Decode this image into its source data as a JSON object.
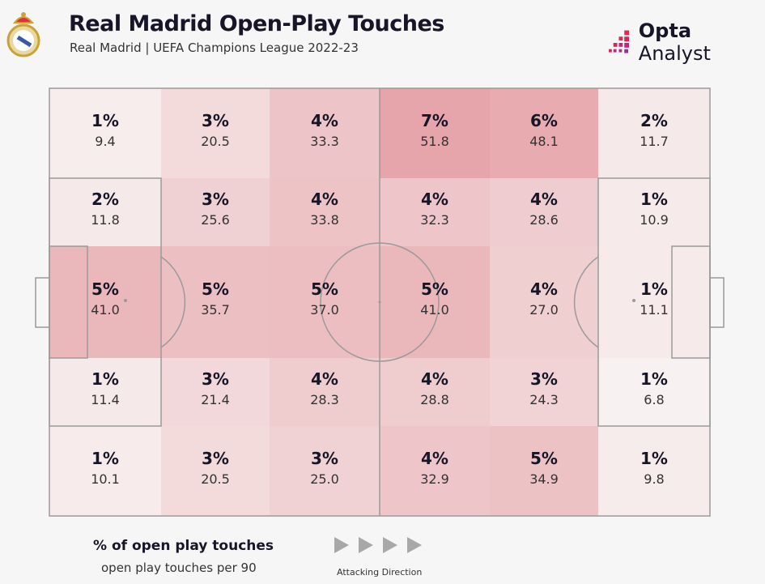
{
  "header": {
    "title": "Real Madrid Open-Play Touches",
    "subtitle": "Real Madrid | UEFA Champions League 2022-23",
    "brand": {
      "bold": "Opta",
      "regular": " Analyst"
    }
  },
  "legend": {
    "primary": "% of open play touches",
    "secondary": "open play touches per 90",
    "direction_label": "Attacking Direction"
  },
  "colors": {
    "low": "#f8f1f1",
    "high": "#e6a5aa",
    "lines": "#9a9a9a"
  },
  "chart_data": {
    "type": "heatmap",
    "title": "Real Madrid Open-Play Touches",
    "columns": 6,
    "rows": 5,
    "cells": [
      [
        {
          "pct": "1%",
          "per90": "9.4"
        },
        {
          "pct": "3%",
          "per90": "20.5"
        },
        {
          "pct": "4%",
          "per90": "33.3"
        },
        {
          "pct": "7%",
          "per90": "51.8"
        },
        {
          "pct": "6%",
          "per90": "48.1"
        },
        {
          "pct": "2%",
          "per90": "11.7"
        }
      ],
      [
        {
          "pct": "2%",
          "per90": "11.8"
        },
        {
          "pct": "3%",
          "per90": "25.6"
        },
        {
          "pct": "4%",
          "per90": "33.8"
        },
        {
          "pct": "4%",
          "per90": "32.3"
        },
        {
          "pct": "4%",
          "per90": "28.6"
        },
        {
          "pct": "1%",
          "per90": "10.9"
        }
      ],
      [
        {
          "pct": "5%",
          "per90": "41.0"
        },
        {
          "pct": "5%",
          "per90": "35.7"
        },
        {
          "pct": "5%",
          "per90": "37.0"
        },
        {
          "pct": "5%",
          "per90": "41.0"
        },
        {
          "pct": "4%",
          "per90": "27.0"
        },
        {
          "pct": "1%",
          "per90": "11.1"
        }
      ],
      [
        {
          "pct": "1%",
          "per90": "11.4"
        },
        {
          "pct": "3%",
          "per90": "21.4"
        },
        {
          "pct": "4%",
          "per90": "28.3"
        },
        {
          "pct": "4%",
          "per90": "28.8"
        },
        {
          "pct": "3%",
          "per90": "24.3"
        },
        {
          "pct": "1%",
          "per90": "6.8"
        }
      ],
      [
        {
          "pct": "1%",
          "per90": "10.1"
        },
        {
          "pct": "3%",
          "per90": "20.5"
        },
        {
          "pct": "3%",
          "per90": "25.0"
        },
        {
          "pct": "4%",
          "per90": "32.9"
        },
        {
          "pct": "5%",
          "per90": "34.9"
        },
        {
          "pct": "1%",
          "per90": "9.8"
        }
      ]
    ],
    "attacking_direction": "left-to-right"
  }
}
